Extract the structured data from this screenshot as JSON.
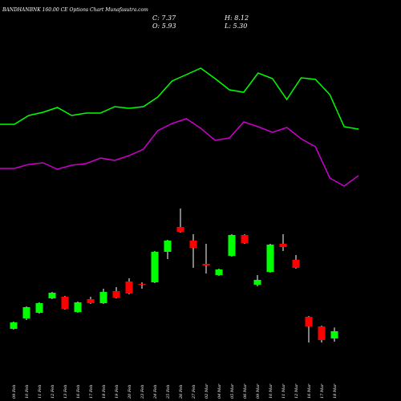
{
  "chart_data": {
    "type": "candlestick",
    "title": "BANDHANBNK 160.00 CE Options Chart Munafasutra.com",
    "ohlc_labels": [
      "C: 7.37",
      "H: 8.12",
      "O: 5.93",
      "L: 5.30"
    ],
    "categories": [
      "09 Feb",
      "10 Feb",
      "11 Feb",
      "12 Feb",
      "13 Feb",
      "16 Feb",
      "17 Feb",
      "18 Feb",
      "19 Feb",
      "20 Feb",
      "23 Feb",
      "24 Feb",
      "25 Feb",
      "26 Feb",
      "27 Feb",
      "02 Mar",
      "04 Mar",
      "05 Mar",
      "06 Mar",
      "09 Mar",
      "10 Mar",
      "11 Mar",
      "12 Mar",
      "16 Mar",
      "17 Mar",
      "18 Mar"
    ],
    "open": [
      7.85,
      9.93,
      11.05,
      13.93,
      14.25,
      11.21,
      13.77,
      12.97,
      15.37,
      17.29,
      16.81,
      17.13,
      23.21,
      28.17,
      25.45,
      20.81,
      18.57,
      22.41,
      26.57,
      16.65,
      19.21,
      24.81,
      21.61,
      10.25,
      8.33,
      5.93
    ],
    "high": [
      9.29,
      12.33,
      13.13,
      15.21,
      14.41,
      13.29,
      14.25,
      15.85,
      16.17,
      17.93,
      17.13,
      23.37,
      25.61,
      31.85,
      26.73,
      24.81,
      19.85,
      26.73,
      26.73,
      18.57,
      24.81,
      26.73,
      22.57,
      10.41,
      8.49,
      8.12
    ],
    "low": [
      7.69,
      9.61,
      10.89,
      13.77,
      11.69,
      11.05,
      12.81,
      12.81,
      13.93,
      14.73,
      15.85,
      16.97,
      21.77,
      27.05,
      20.01,
      18.89,
      18.41,
      22.25,
      24.81,
      16.33,
      19.05,
      23.37,
      19.85,
      5.13,
      5.13,
      5.3
    ],
    "close": [
      9.13,
      12.17,
      12.97,
      15.05,
      11.85,
      13.13,
      12.97,
      15.21,
      14.09,
      14.89,
      16.65,
      23.21,
      25.45,
      27.21,
      24.01,
      20.49,
      19.69,
      26.57,
      24.97,
      17.61,
      24.65,
      24.17,
      20.01,
      8.33,
      5.61,
      7.37
    ],
    "up_color": "#00ff00",
    "down_color": "#ff0000",
    "lines": [
      {
        "color": "#00ff00",
        "values": [
          48.65,
          48.65,
          50.41,
          51.05,
          52.01,
          50.41,
          50.89,
          50.89,
          52.17,
          51.85,
          52.17,
          54.09,
          57.29,
          58.57,
          59.85,
          57.77,
          55.53,
          55.05,
          58.89,
          57.77,
          53.61,
          57.93,
          57.61,
          54.57,
          48.17,
          47.69
        ]
      },
      {
        "color": "#cc00cc",
        "values": [
          39.85,
          39.85,
          40.65,
          40.97,
          39.69,
          40.49,
          40.81,
          41.93,
          41.45,
          42.41,
          43.69,
          47.37,
          48.81,
          49.77,
          47.85,
          45.45,
          45.93,
          49.13,
          48.17,
          47.05,
          48.01,
          45.77,
          44.17,
          37.93,
          36.33,
          38.41
        ]
      }
    ],
    "ylim": [
      -6.55,
      73.45
    ]
  }
}
